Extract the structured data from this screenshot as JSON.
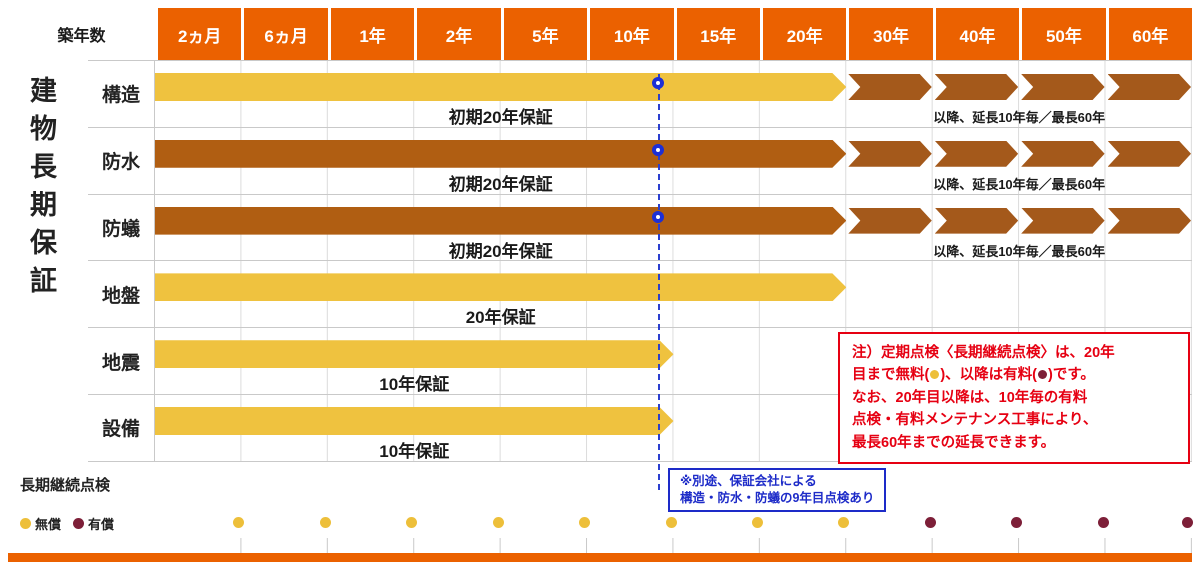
{
  "header": {
    "label": "築年数",
    "columns": [
      "2ヵ月",
      "6ヵ月",
      "1年",
      "2年",
      "5年",
      "10年",
      "15年",
      "20年",
      "30年",
      "40年",
      "50年",
      "60年"
    ]
  },
  "sidebar": {
    "title": "建物長期保証"
  },
  "rows": [
    {
      "name": "構造",
      "bar_color": "yellow",
      "coverage": "20年",
      "caption": "初期20年保証",
      "extension_note": "以降、延長10年毎／最長60年",
      "extends_to": "60年",
      "checkpoint_10y": true
    },
    {
      "name": "防水",
      "bar_color": "brown",
      "coverage": "20年",
      "caption": "初期20年保証",
      "extension_note": "以降、延長10年毎／最長60年",
      "extends_to": "60年",
      "checkpoint_10y": true
    },
    {
      "name": "防蟻",
      "bar_color": "brown",
      "coverage": "20年",
      "caption": "初期20年保証",
      "extension_note": "以降、延長10年毎／最長60年",
      "extends_to": "60年",
      "checkpoint_10y": true
    },
    {
      "name": "地盤",
      "bar_color": "yellow",
      "coverage": "20年",
      "caption": "20年保証"
    },
    {
      "name": "地震",
      "bar_color": "yellow",
      "coverage": "10年",
      "caption": "10年保証"
    },
    {
      "name": "設備",
      "bar_color": "yellow",
      "coverage": "10年",
      "caption": "10年保証"
    }
  ],
  "note": {
    "s1": "注）定期点検〈長期継続点検〉は、20年\n目まで無料(",
    "s2": ")、以降は有料(",
    "s3": ")です。\nなお、20年目以降は、10年毎の有料\n点検・有料メンテナンス工事により、\n最長60年までの延長できます。"
  },
  "survey_box": {
    "line1": "※別途、保証会社による",
    "line2": "構造・防水・防蟻の9年目点検あり"
  },
  "inspection": {
    "label": "長期継続点検",
    "free_label": "無償",
    "paid_label": "有償",
    "free_marks": [
      "2ヵ月",
      "6ヵ月",
      "1年",
      "2年",
      "5年",
      "10年",
      "15年",
      "20年"
    ],
    "paid_marks": [
      "30年",
      "40年",
      "50年",
      "60年"
    ]
  },
  "colors": {
    "orange": "#eb6100",
    "yellow_bar": "#efc23f",
    "brown_bar": "#b05e12",
    "extension_brown": "#a4591b",
    "free_dot": "#edbf3a",
    "paid_dot": "#7d1f38",
    "blue": "#1d2bc8",
    "red": "#e60012"
  }
}
